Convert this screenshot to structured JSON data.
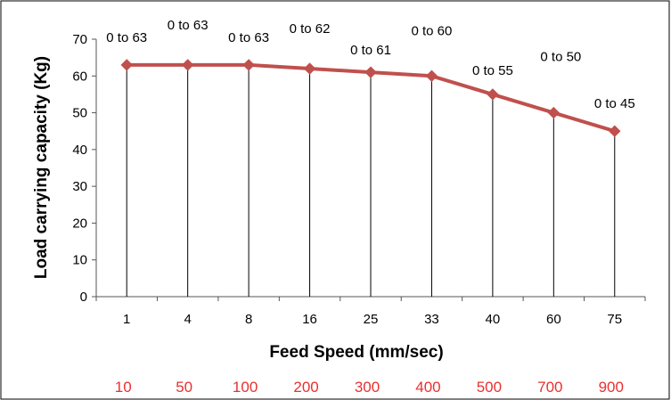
{
  "chart_data": {
    "type": "line",
    "categories": [
      "1",
      "4",
      "8",
      "16",
      "25",
      "33",
      "40",
      "60",
      "75"
    ],
    "series": [
      {
        "values": [
          63,
          63,
          63,
          62,
          61,
          60,
          55,
          50,
          45
        ],
        "color": "#c0504d"
      }
    ],
    "data_labels": [
      "0 to 63",
      "0 to 63",
      "0 to 63",
      "0 to 62",
      "0 to 61",
      "0 to 60",
      "0 to 55",
      "0 to 50",
      "0 to 45"
    ],
    "extra_row_labels": [
      "10",
      "50",
      "100",
      "200",
      "300",
      "400",
      "500",
      "700",
      "900"
    ],
    "extra_row_color": "#e8312f",
    "xlabel": "Feed Speed (mm/sec)",
    "ylabel": "Load carrying capacity (Kg)",
    "ylim": [
      0,
      70
    ],
    "yticks": [
      0,
      10,
      20,
      30,
      40,
      50,
      60,
      70
    ],
    "drop_lines": true,
    "marker": "diamond",
    "grid": false,
    "legend": "none"
  }
}
